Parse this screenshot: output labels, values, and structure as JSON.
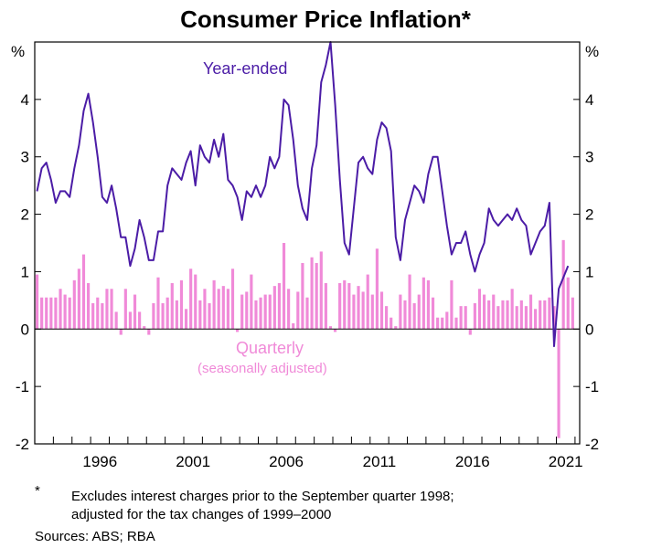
{
  "chart_data": {
    "type": "bar+line",
    "title": "Consumer Price Inflation*",
    "unit_label_left": "%",
    "unit_label_right": "%",
    "ylim": [
      -2,
      5
    ],
    "yticks": [
      -2,
      -1,
      0,
      1,
      2,
      3,
      4
    ],
    "xlim": [
      1993.0,
      2022.25
    ],
    "xticks": [
      1996,
      2001,
      2006,
      2011,
      2016,
      2021
    ],
    "annotations": {
      "line_label": "Year-ended",
      "bar_label": "Quarterly",
      "bar_sublabel": "(seasonally adjusted)"
    },
    "colors": {
      "line": "#4b1ca6",
      "bars": "#f08ad8",
      "zero_line": "#000000"
    },
    "series": [
      {
        "name": "Year-ended",
        "type": "line",
        "start_year": 1993.0,
        "step": 0.25,
        "values": [
          2.4,
          2.8,
          2.9,
          2.6,
          2.2,
          2.4,
          2.4,
          2.3,
          2.8,
          3.2,
          3.8,
          4.1,
          3.6,
          3.0,
          2.3,
          2.2,
          2.5,
          2.1,
          1.6,
          1.6,
          1.1,
          1.4,
          1.9,
          1.6,
          1.2,
          1.2,
          1.7,
          1.7,
          2.5,
          2.8,
          2.7,
          2.6,
          2.9,
          3.1,
          2.5,
          3.2,
          3.0,
          2.9,
          3.3,
          3.0,
          3.4,
          2.6,
          2.5,
          2.3,
          1.9,
          2.4,
          2.3,
          2.5,
          2.3,
          2.5,
          3.0,
          2.8,
          3.0,
          4.0,
          3.9,
          3.3,
          2.5,
          2.1,
          1.9,
          2.8,
          3.2,
          4.3,
          4.6,
          5.0,
          3.9,
          2.6,
          1.5,
          1.3,
          2.1,
          2.9,
          3.0,
          2.8,
          2.7,
          3.3,
          3.6,
          3.5,
          3.1,
          1.6,
          1.2,
          1.9,
          2.2,
          2.5,
          2.4,
          2.2,
          2.7,
          3.0,
          3.0,
          2.4,
          1.8,
          1.3,
          1.5,
          1.5,
          1.7,
          1.3,
          1.0,
          1.3,
          1.5,
          2.1,
          1.9,
          1.8,
          1.9,
          2.0,
          1.9,
          2.1,
          1.9,
          1.8,
          1.3,
          1.5,
          1.7,
          1.8,
          2.2,
          -0.3,
          0.7,
          0.9,
          1.1
        ]
      },
      {
        "name": "Quarterly",
        "type": "bar",
        "start_year": 1993.0,
        "step": 0.25,
        "values": [
          0.95,
          0.55,
          0.55,
          0.55,
          0.55,
          0.7,
          0.6,
          0.55,
          0.85,
          1.05,
          1.3,
          0.8,
          0.45,
          0.55,
          0.45,
          0.7,
          0.7,
          0.3,
          -0.1,
          0.7,
          0.3,
          0.6,
          0.3,
          0.05,
          -0.1,
          0.45,
          0.9,
          0.45,
          0.55,
          0.8,
          0.5,
          0.85,
          0.35,
          1.05,
          0.95,
          0.5,
          0.7,
          0.45,
          0.85,
          0.7,
          0.75,
          0.7,
          1.05,
          -0.05,
          0.6,
          0.65,
          0.95,
          0.5,
          0.55,
          0.6,
          0.6,
          0.75,
          0.8,
          1.5,
          0.7,
          0.1,
          0.65,
          1.15,
          0.55,
          1.25,
          1.15,
          1.35,
          0.8,
          0.05,
          -0.05,
          0.8,
          0.85,
          0.8,
          0.6,
          0.75,
          0.65,
          0.95,
          0.6,
          1.4,
          0.65,
          0.4,
          0.2,
          0.05,
          0.6,
          0.5,
          0.95,
          0.45,
          0.6,
          0.9,
          0.85,
          0.55,
          0.2,
          0.2,
          0.3,
          0.85,
          0.2,
          0.4,
          0.4,
          -0.1,
          0.45,
          0.7,
          0.6,
          0.5,
          0.6,
          0.4,
          0.5,
          0.5,
          0.7,
          0.4,
          0.5,
          0.4,
          0.6,
          0.35,
          0.5,
          0.5,
          0.55,
          0.4,
          -1.9,
          1.55,
          0.9,
          0.55
        ]
      }
    ]
  },
  "footnote": {
    "marker": "*",
    "line1": "Excludes interest charges prior to the September quarter 1998;",
    "line2": "adjusted for the tax changes of 1999–2000"
  },
  "sources": "Sources: ABS; RBA"
}
